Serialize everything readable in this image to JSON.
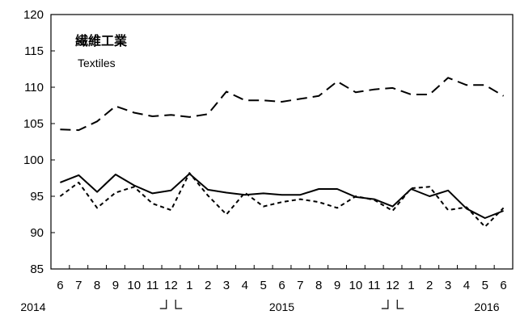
{
  "chart_data": {
    "type": "line",
    "title": "繊維工業",
    "subtitle": "Textiles",
    "xlabel": "",
    "ylabel": "",
    "ylim": [
      85,
      120
    ],
    "yticks": [
      85,
      90,
      95,
      100,
      105,
      110,
      115,
      120
    ],
    "grid": false,
    "legend": "none",
    "categories": [
      "6",
      "7",
      "8",
      "9",
      "10",
      "11",
      "12",
      "1",
      "2",
      "3",
      "4",
      "5",
      "6",
      "7",
      "8",
      "9",
      "10",
      "11",
      "12",
      "1",
      "2",
      "3",
      "4",
      "5",
      "6"
    ],
    "year_labels": [
      {
        "text": "2014",
        "index": 0
      },
      {
        "text": "2015",
        "index": 12
      },
      {
        "text": "2016",
        "index": 24
      }
    ],
    "year_breaks": [
      6.5,
      18.5
    ],
    "series": [
      {
        "style": "solid",
        "color": "#000000",
        "values": [
          96.9,
          97.9,
          95.6,
          98.0,
          96.5,
          95.4,
          95.8,
          98.1,
          95.9,
          95.5,
          95.2,
          95.4,
          95.2,
          95.2,
          96.0,
          96.0,
          94.9,
          94.6,
          93.6,
          96.0,
          95.0,
          95.8,
          93.3,
          92.0,
          93.0
        ]
      },
      {
        "style": "short-dash",
        "color": "#000000",
        "values": [
          95.0,
          96.9,
          93.4,
          95.5,
          96.3,
          94.0,
          93.1,
          98.2,
          95.1,
          92.5,
          95.5,
          93.6,
          94.2,
          94.6,
          94.2,
          93.4,
          95.0,
          94.5,
          93.0,
          96.1,
          96.3,
          93.1,
          93.5,
          90.8,
          93.4
        ]
      },
      {
        "style": "long-dash",
        "color": "#000000",
        "values": [
          104.2,
          104.1,
          105.3,
          107.4,
          106.5,
          106.0,
          106.2,
          105.9,
          106.3,
          109.4,
          108.2,
          108.2,
          108.0,
          108.4,
          108.8,
          110.8,
          109.3,
          109.7,
          109.9,
          109.0,
          109.0,
          111.3,
          110.3,
          110.3,
          108.8
        ]
      }
    ]
  }
}
